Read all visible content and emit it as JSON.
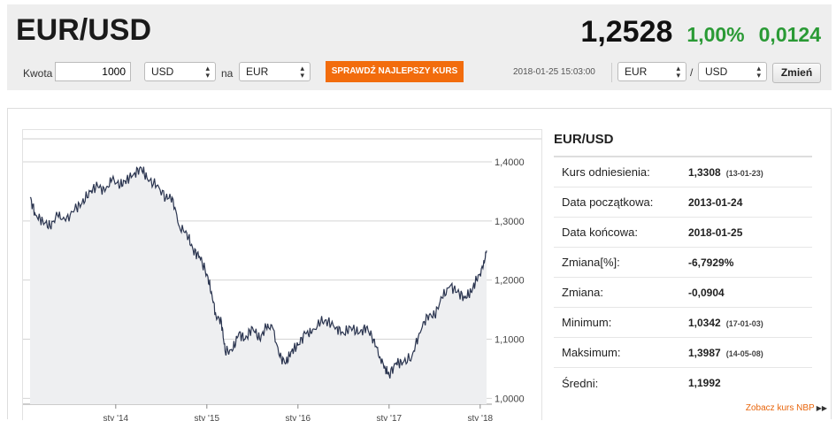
{
  "header": {
    "pair": "EUR/USD",
    "rate": "1,2528",
    "change_pct": "1,00%",
    "change_abs": "0,0124"
  },
  "converter": {
    "amount_label": "Kwota",
    "amount_value": "1000",
    "from_currency": "USD",
    "to_label": "na",
    "to_currency": "EUR",
    "cta_label": "SPRAWDŹ NAJLEPSZY KURS",
    "timestamp": "2018-01-25 15:03:00",
    "base_currency": "EUR",
    "separator": "/",
    "quote_currency": "USD",
    "change_button": "Zmień"
  },
  "stats": {
    "title": "EUR/USD",
    "rows": [
      {
        "label": "Kurs odniesienia:",
        "value": "1,3308",
        "date": "(13-01-23)"
      },
      {
        "label": "Data początkowa:",
        "value": "2013-01-24",
        "date": ""
      },
      {
        "label": "Data końcowa:",
        "value": "2018-01-25",
        "date": ""
      },
      {
        "label": "Zmiana[%]:",
        "value": "-6,7929%",
        "date": ""
      },
      {
        "label": "Zmiana:",
        "value": "-0,0904",
        "date": ""
      },
      {
        "label": "Minimum:",
        "value": "1,0342",
        "date": "(17-01-03)"
      },
      {
        "label": "Maksimum:",
        "value": "1,3987",
        "date": "(14-05-08)"
      },
      {
        "label": "Średni:",
        "value": "1,1992",
        "date": ""
      }
    ],
    "nbp_link": "Zobacz kurs NBP"
  },
  "chart_data": {
    "type": "area",
    "y_ticks": [
      {
        "label": "1,0000",
        "value": 1.0
      },
      {
        "label": "1,1000",
        "value": 1.1
      },
      {
        "label": "1,2000",
        "value": 1.2
      },
      {
        "label": "1,3000",
        "value": 1.3
      },
      {
        "label": "1,4000",
        "value": 1.4
      }
    ],
    "x_ticks": [
      {
        "label": "sty '14",
        "value": 2014.0
      },
      {
        "label": "sty '15",
        "value": 2015.0
      },
      {
        "label": "sty '16",
        "value": 2016.0
      },
      {
        "label": "sty '17",
        "value": 2017.0
      },
      {
        "label": "sty '18",
        "value": 2018.0
      }
    ],
    "xlim": [
      2013.06,
      2018.07
    ],
    "ylim": [
      0.99,
      1.43
    ],
    "grid": true,
    "color": "#2b3550",
    "fill": "#eeeff1",
    "x": [
      2013.06,
      2013.12,
      2013.2,
      2013.28,
      2013.36,
      2013.45,
      2013.55,
      2013.63,
      2013.72,
      2013.8,
      2013.88,
      2013.96,
      2014.05,
      2014.12,
      2014.2,
      2014.28,
      2014.35,
      2014.45,
      2014.55,
      2014.62,
      2014.7,
      2014.78,
      2014.85,
      2014.92,
      2015.0,
      2015.05,
      2015.1,
      2015.16,
      2015.2,
      2015.28,
      2015.35,
      2015.42,
      2015.5,
      2015.58,
      2015.65,
      2015.72,
      2015.8,
      2015.87,
      2015.93,
      2016.0,
      2016.08,
      2016.15,
      2016.25,
      2016.33,
      2016.42,
      2016.5,
      2016.58,
      2016.67,
      2016.75,
      2016.83,
      2016.9,
      2016.96,
      2017.0,
      2017.08,
      2017.15,
      2017.25,
      2017.33,
      2017.42,
      2017.5,
      2017.58,
      2017.67,
      2017.75,
      2017.83,
      2017.9,
      2017.96,
      2018.03,
      2018.07
    ],
    "y": [
      1.34,
      1.31,
      1.3,
      1.29,
      1.31,
      1.3,
      1.32,
      1.33,
      1.35,
      1.36,
      1.35,
      1.37,
      1.36,
      1.37,
      1.38,
      1.39,
      1.37,
      1.36,
      1.34,
      1.34,
      1.29,
      1.28,
      1.25,
      1.24,
      1.21,
      1.18,
      1.14,
      1.13,
      1.08,
      1.08,
      1.11,
      1.1,
      1.12,
      1.1,
      1.12,
      1.12,
      1.07,
      1.06,
      1.08,
      1.09,
      1.11,
      1.11,
      1.13,
      1.13,
      1.12,
      1.11,
      1.12,
      1.11,
      1.12,
      1.1,
      1.07,
      1.05,
      1.04,
      1.06,
      1.06,
      1.07,
      1.11,
      1.14,
      1.14,
      1.17,
      1.19,
      1.18,
      1.17,
      1.18,
      1.2,
      1.22,
      1.25
    ]
  }
}
